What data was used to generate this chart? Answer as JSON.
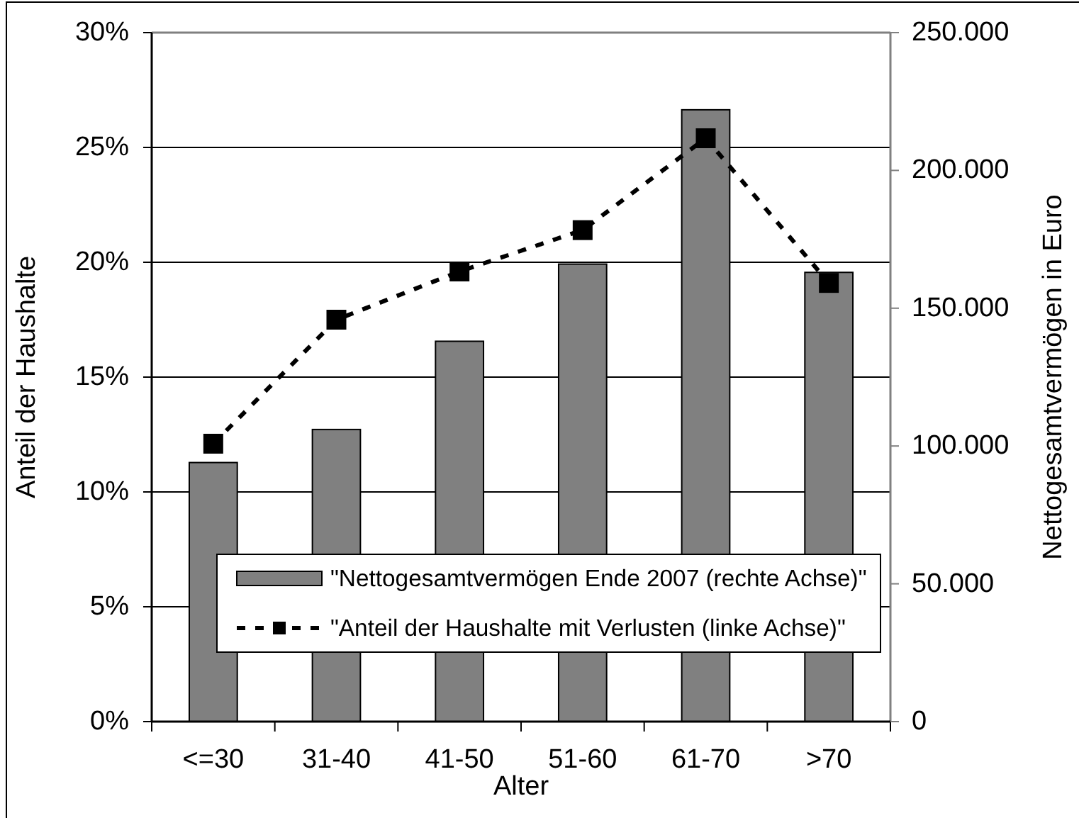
{
  "chart_data": {
    "type": "bar",
    "categories": [
      "<=30",
      "31-40",
      "41-50",
      "51-60",
      "61-70",
      ">70"
    ],
    "xlabel": "Alter",
    "ylabel": "Anteil der Haushalte",
    "y2label": "Nettogesamtvermögen in Euro",
    "series": [
      {
        "name": "\"Nettogesamtvermögen Ende 2007 (rechte Achse)\"",
        "axis": "y2",
        "color": "#808080",
        "values": [
          94000,
          106000,
          138000,
          166000,
          222000,
          163000
        ]
      },
      {
        "name": "\"Anteil der Haushalte mit Verlusten (linke Achse)\"",
        "type": "line",
        "color": "#000000",
        "marker": "square",
        "line_style": "dashed",
        "values": [
          12.1,
          17.5,
          19.6,
          21.4,
          25.4,
          19.1
        ]
      }
    ],
    "ylim": [
      0,
      30
    ],
    "yticks": [
      {
        "value": 0,
        "label": "0%"
      },
      {
        "value": 5,
        "label": "5%"
      },
      {
        "value": 10,
        "label": "10%"
      },
      {
        "value": 15,
        "label": "15%"
      },
      {
        "value": 20,
        "label": "20%"
      },
      {
        "value": 25,
        "label": "25%"
      },
      {
        "value": 30,
        "label": "30%"
      }
    ],
    "y2lim": [
      0,
      250000
    ],
    "y2ticks": [
      0,
      {
        "value": 50000,
        "label": "50.000"
      },
      {
        "value": 100000,
        "label": "100.000"
      },
      {
        "value": 150000,
        "label": "150.000"
      },
      {
        "value": 200000,
        "label": "200.000"
      },
      {
        "value": 250000,
        "label": "250.000"
      }
    ],
    "grid": "y",
    "legend": "bottom"
  }
}
